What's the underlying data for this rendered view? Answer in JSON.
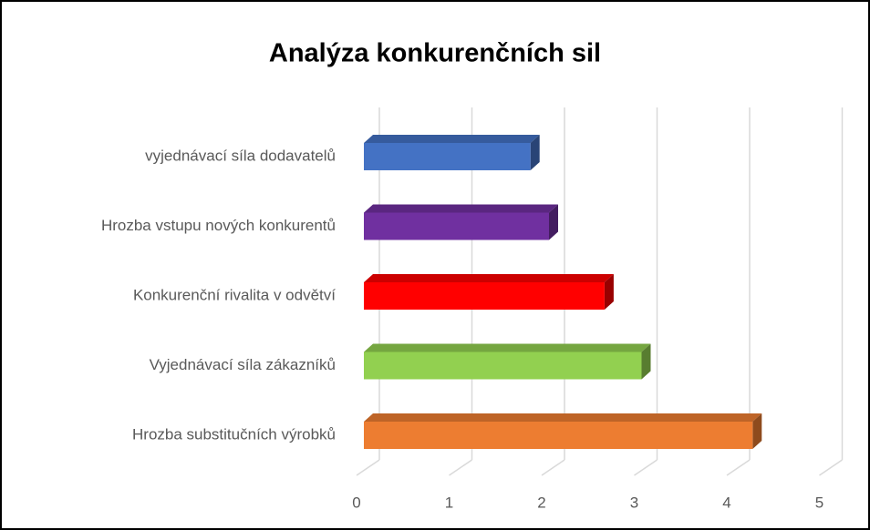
{
  "chart_data": {
    "type": "bar3d_horizontal",
    "title": "Analýza konkurenčních sil",
    "categories": [
      "vyjednávací síla dodavatelů",
      "Hrozba vstupu nových konkurentů",
      "Konkurenční rivalita v odvětví",
      "Vyjednávací síla zákazníků",
      "Hrozba substitučních výrobků"
    ],
    "values": [
      1.8,
      2.0,
      2.6,
      3.0,
      4.2
    ],
    "colors": [
      "#4472c4",
      "#7030a0",
      "#ff0000",
      "#92d050",
      "#ed7d31"
    ],
    "xlim": [
      0,
      5
    ],
    "xticks": [
      0,
      1,
      2,
      3,
      4,
      5
    ],
    "grid": true
  }
}
